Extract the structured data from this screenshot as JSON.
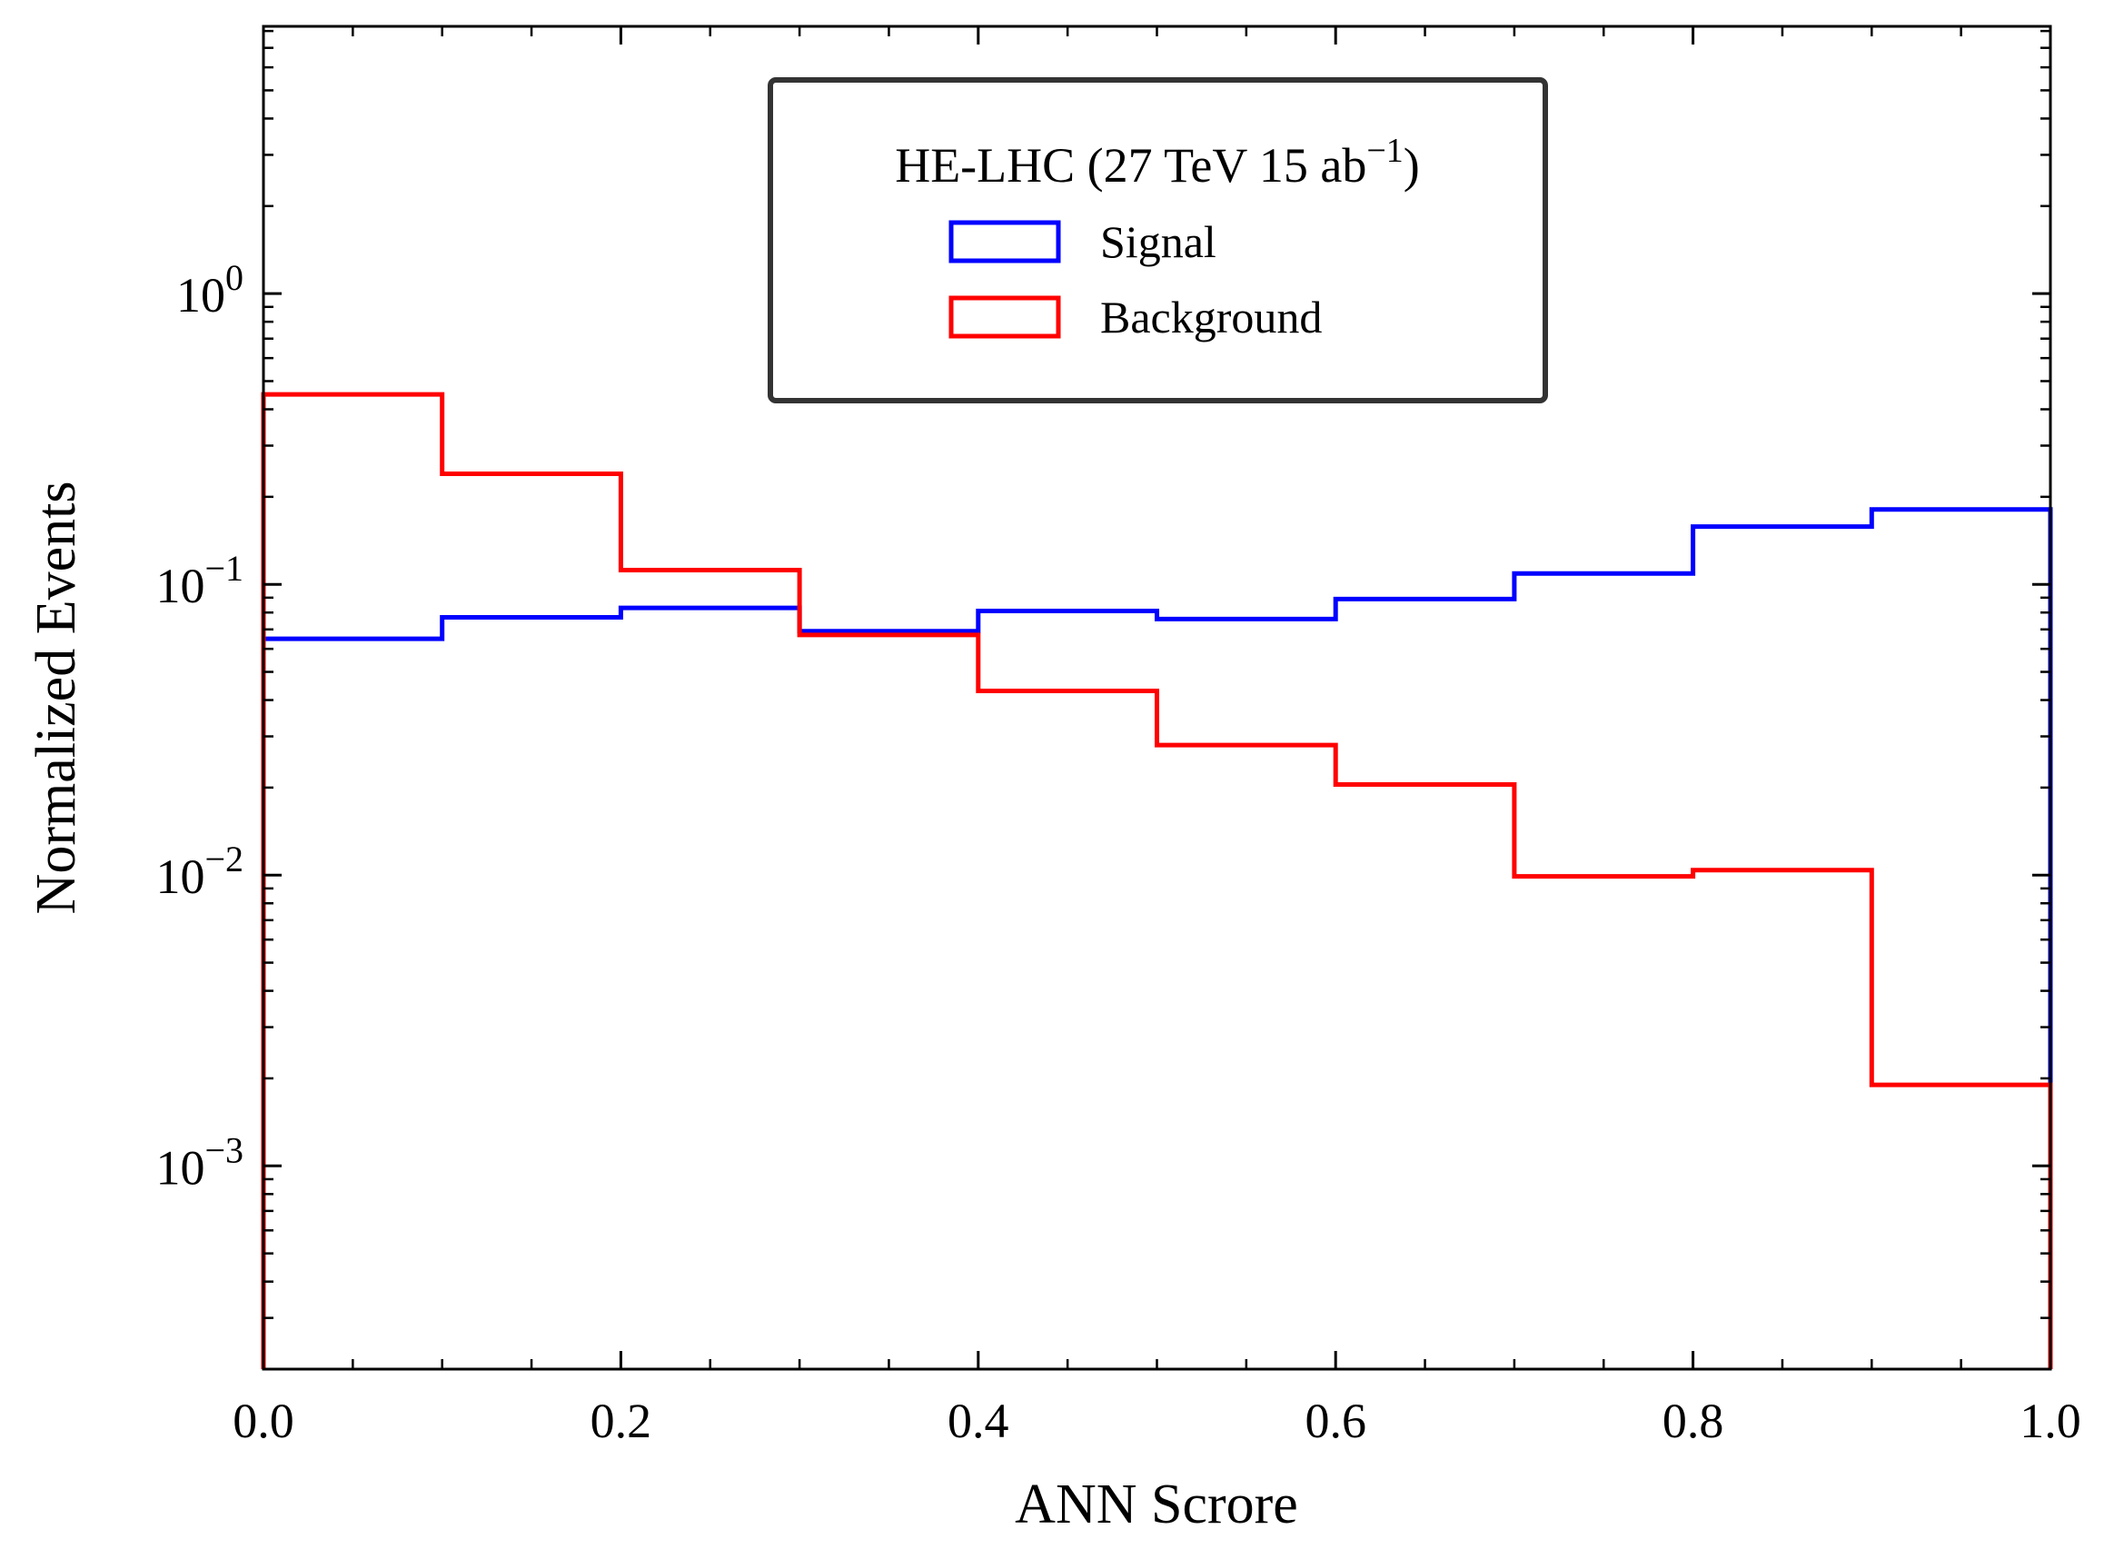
{
  "chart_data": {
    "type": "step-histogram",
    "xlabel": "ANN Scrore",
    "ylabel": "Normalized Events",
    "yscale": "log",
    "xlim": [
      0.0,
      1.0
    ],
    "ylim": [
      0.0002,
      8.3
    ],
    "x_ticks": [
      0.0,
      0.2,
      0.4,
      0.6,
      0.8,
      1.0
    ],
    "x_tick_labels": [
      "0.0",
      "0.2",
      "0.4",
      "0.6",
      "0.8",
      "1.0"
    ],
    "y_ticks": [
      {
        "value": 1,
        "base": "10",
        "exp": "0"
      },
      {
        "value": 0.1,
        "base": "10",
        "exp": "−1"
      },
      {
        "value": 0.01,
        "base": "10",
        "exp": "−2"
      },
      {
        "value": 0.001,
        "base": "10",
        "exp": "−3"
      }
    ],
    "bin_edges": [
      0.0,
      0.1,
      0.2,
      0.3,
      0.4,
      0.5,
      0.6,
      0.7,
      0.8,
      0.9,
      1.0
    ],
    "legend": {
      "title_main": "HE-LHC (27 TeV 15 ab",
      "title_sup": "−1",
      "title_close": ")"
    },
    "series": [
      {
        "name": "Signal",
        "color": "#0000ff",
        "values": [
          0.065,
          0.077,
          0.083,
          0.069,
          0.081,
          0.076,
          0.089,
          0.109,
          0.158,
          0.181
        ]
      },
      {
        "name": "Background",
        "color": "#ff0000",
        "values": [
          0.45,
          0.24,
          0.112,
          0.067,
          0.043,
          0.028,
          0.0205,
          0.0099,
          0.0104,
          0.0019
        ]
      }
    ]
  }
}
